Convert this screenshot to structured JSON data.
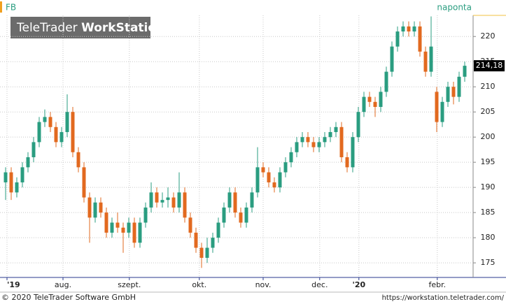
{
  "chart_data": {
    "type": "candlestick",
    "symbol": "FB",
    "interval": "naponta",
    "watermark": {
      "brand": "TeleTrader",
      "product": "WorkStation"
    },
    "footer": {
      "copyright": "© 2020 TeleTrader Software GmbH",
      "url": "https://workstation.teletrader.com/"
    },
    "up_color": "#2a9d80",
    "down_color": "#e2691f",
    "open": [
      191,
      193,
      189,
      191,
      194,
      196,
      199,
      203,
      204,
      202,
      199,
      201,
      205,
      197,
      194,
      188,
      184,
      187,
      185,
      181,
      183,
      182,
      181,
      183,
      179,
      183,
      186,
      189,
      187,
      187.5,
      188,
      186,
      189,
      184,
      181,
      178,
      176,
      178,
      180,
      183,
      186,
      189,
      185,
      183,
      186,
      189,
      194,
      193,
      191,
      190,
      193,
      195,
      197,
      199,
      200,
      199,
      198,
      199,
      200,
      201,
      202,
      196,
      194,
      200,
      205,
      208,
      207,
      206,
      209,
      213,
      218,
      221,
      222,
      221,
      222,
      217,
      213,
      209,
      203,
      207,
      210,
      208,
      212
    ],
    "high": [
      194,
      194,
      192,
      195,
      197,
      200,
      204,
      205.5,
      205,
      203,
      202,
      208.5,
      206,
      198,
      195,
      189,
      188,
      188,
      186,
      184,
      185,
      183,
      184,
      184,
      184,
      187,
      191,
      190,
      189,
      190,
      189,
      193,
      190,
      185,
      182,
      179,
      180,
      181,
      184,
      187,
      190,
      190,
      186,
      187,
      190,
      198,
      195,
      194,
      192,
      194,
      196,
      198,
      200,
      201,
      201,
      200,
      200,
      201,
      202,
      203,
      203,
      197,
      201,
      206,
      209,
      209,
      208,
      210,
      214,
      219,
      222,
      223,
      223,
      223,
      223,
      218,
      224,
      210,
      208,
      211,
      211,
      213,
      215
    ],
    "low": [
      187.5,
      187.5,
      188,
      190,
      193,
      195,
      198,
      202,
      201,
      198,
      198,
      200,
      196,
      193,
      187,
      179,
      183,
      184,
      180,
      180,
      181,
      177,
      180,
      178,
      178,
      182,
      185,
      186,
      186,
      186,
      185,
      185,
      183,
      180,
      177,
      174,
      175,
      177,
      179,
      182,
      185,
      184,
      182,
      182,
      185,
      188,
      192,
      190,
      189,
      189,
      192,
      194,
      196,
      198,
      198,
      197,
      197,
      198,
      199,
      200,
      195,
      193,
      193,
      199,
      204,
      206,
      204,
      205,
      208,
      212,
      217,
      220,
      220,
      220,
      216,
      212,
      212,
      201,
      202,
      206,
      206.5,
      207,
      211
    ],
    "close": [
      193,
      189,
      191,
      194,
      196,
      199,
      203,
      204,
      202,
      199,
      201,
      205,
      197,
      194,
      188,
      184,
      187,
      185,
      181,
      183,
      182,
      181,
      183,
      179,
      183,
      186,
      189,
      187,
      187.5,
      188,
      186,
      189,
      184,
      181,
      178,
      176,
      178,
      180,
      183,
      186,
      189,
      185,
      183,
      186,
      189,
      194,
      193,
      191,
      190,
      193,
      195,
      197,
      199,
      200,
      199,
      198,
      199,
      200,
      201,
      202,
      196,
      194,
      200,
      205,
      208,
      207,
      206,
      209,
      213,
      218,
      221,
      222,
      221,
      222,
      217,
      213,
      218,
      203,
      207,
      210,
      208,
      212,
      214.18
    ],
    "last_price": {
      "value": 214.18,
      "label": "214,18"
    },
    "xlim": [
      -1,
      83.5
    ],
    "xticks": [
      {
        "value": 0.25,
        "label": "'19"
      },
      {
        "value": 10.25,
        "label": "aug."
      },
      {
        "value": 22.1,
        "label": "szept."
      },
      {
        "value": 34.6,
        "label": "okt."
      },
      {
        "value": 46,
        "label": "nov."
      },
      {
        "value": 56.1,
        "label": "dec."
      },
      {
        "value": 63.1,
        "label": "'20"
      },
      {
        "value": 77.1,
        "label": "febr."
      }
    ],
    "ylim": [
      172.1,
      224.2
    ],
    "yticks": [
      175,
      180,
      185,
      190,
      195,
      200,
      205,
      210,
      215,
      220
    ],
    "grid": true
  }
}
